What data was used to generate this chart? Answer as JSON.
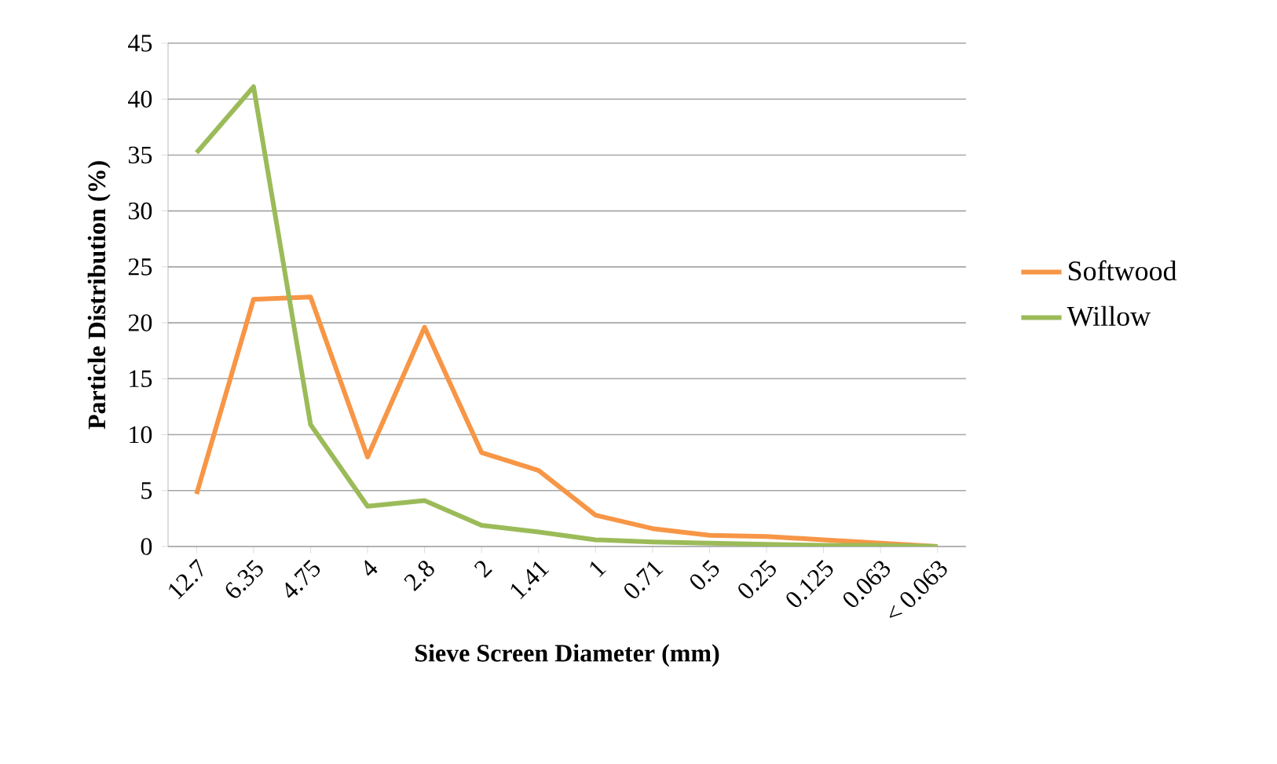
{
  "chart_data": {
    "type": "line",
    "xlabel": "Sieve Screen Diameter (mm)",
    "ylabel": "Particle Distribution  (%)",
    "categories": [
      "12.7",
      "6.35",
      "4.75",
      "4",
      "2.8",
      "2",
      "1.41",
      "1",
      "0.71",
      "0.5",
      "0.25",
      "0.125",
      "0.063",
      "< 0.063"
    ],
    "series": [
      {
        "name": "Softwood",
        "color": "#f79646",
        "values": [
          4.7,
          22.1,
          22.3,
          8.0,
          19.6,
          8.4,
          6.8,
          2.8,
          1.6,
          1.0,
          0.9,
          0.6,
          0.3,
          0
        ]
      },
      {
        "name": "Willow",
        "color": "#9bbb59",
        "values": [
          35.2,
          41.1,
          10.9,
          3.6,
          4.1,
          1.9,
          1.3,
          0.6,
          0.4,
          0.3,
          0.2,
          0.1,
          0.1,
          0
        ]
      }
    ],
    "ylim": [
      0,
      45
    ],
    "yticks": [
      0,
      5,
      10,
      15,
      20,
      25,
      30,
      35,
      40,
      45
    ],
    "grid": "y",
    "legend": "right",
    "marker": "none",
    "line_style": "solid"
  }
}
